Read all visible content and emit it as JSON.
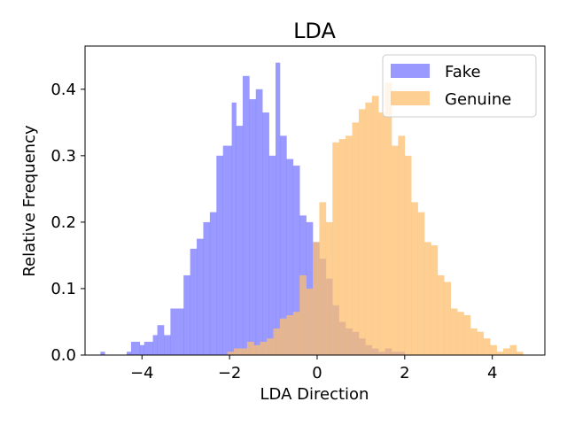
{
  "chart_data": {
    "type": "histogram",
    "title": "LDA",
    "xlabel": "LDA Direction",
    "ylabel": "Relative Frequency",
    "xlim": [
      -5.3,
      5.2
    ],
    "ylim": [
      0,
      0.465
    ],
    "xticks": [
      -4,
      -2,
      0,
      2,
      4
    ],
    "xtick_labels": [
      "−4",
      "−2",
      "0",
      "2",
      "4"
    ],
    "yticks": [
      0.0,
      0.1,
      0.2,
      0.3,
      0.4
    ],
    "ytick_labels": [
      "0.0",
      "0.1",
      "0.2",
      "0.3",
      "0.4"
    ],
    "legend_position": "top-right",
    "series": [
      {
        "name": "Fake",
        "color": "#7777ff",
        "alpha": 0.75,
        "bins": [
          [
            -4.95,
            -4.85,
            0.005
          ],
          [
            -4.35,
            -4.25,
            0.005
          ],
          [
            -4.25,
            -4.05,
            0.02
          ],
          [
            -4.05,
            -3.95,
            0.015
          ],
          [
            -3.95,
            -3.75,
            0.02
          ],
          [
            -3.75,
            -3.65,
            0.03
          ],
          [
            -3.65,
            -3.5,
            0.045
          ],
          [
            -3.5,
            -3.35,
            0.03
          ],
          [
            -3.35,
            -3.05,
            0.07
          ],
          [
            -3.05,
            -2.9,
            0.12
          ],
          [
            -2.9,
            -2.75,
            0.16
          ],
          [
            -2.75,
            -2.6,
            0.175
          ],
          [
            -2.6,
            -2.45,
            0.2
          ],
          [
            -2.45,
            -2.3,
            0.215
          ],
          [
            -2.3,
            -2.15,
            0.3
          ],
          [
            -2.15,
            -1.95,
            0.315
          ],
          [
            -1.95,
            -1.85,
            0.38
          ],
          [
            -1.85,
            -1.7,
            0.345
          ],
          [
            -1.7,
            -1.55,
            0.42
          ],
          [
            -1.55,
            -1.4,
            0.385
          ],
          [
            -1.4,
            -1.25,
            0.4
          ],
          [
            -1.25,
            -1.1,
            0.365
          ],
          [
            -1.1,
            -0.95,
            0.3
          ],
          [
            -0.95,
            -0.85,
            0.44
          ],
          [
            -0.85,
            -0.7,
            0.33
          ],
          [
            -0.7,
            -0.55,
            0.295
          ],
          [
            -0.55,
            -0.4,
            0.285
          ],
          [
            -0.4,
            -0.25,
            0.21
          ],
          [
            -0.25,
            -0.1,
            0.2
          ],
          [
            -0.1,
            0.05,
            0.17
          ],
          [
            0.05,
            0.2,
            0.145
          ],
          [
            0.2,
            0.35,
            0.115
          ],
          [
            0.35,
            0.5,
            0.075
          ],
          [
            0.5,
            0.65,
            0.05
          ],
          [
            0.65,
            0.8,
            0.04
          ],
          [
            0.8,
            0.95,
            0.035
          ],
          [
            0.95,
            1.1,
            0.025
          ],
          [
            1.1,
            1.25,
            0.015
          ],
          [
            1.25,
            1.4,
            0.01
          ],
          [
            1.4,
            1.55,
            0.005
          ],
          [
            1.55,
            1.7,
            0.01
          ],
          [
            1.7,
            1.85,
            0.005
          ],
          [
            1.85,
            2.0,
            0.005
          ]
        ]
      },
      {
        "name": "Genuine",
        "color": "#fdbf6f",
        "alpha": 0.75,
        "bins": [
          [
            -2.05,
            -1.9,
            0.005
          ],
          [
            -1.9,
            -1.75,
            0.01
          ],
          [
            -1.75,
            -1.6,
            0.01
          ],
          [
            -1.6,
            -1.45,
            0.02
          ],
          [
            -1.45,
            -1.3,
            0.015
          ],
          [
            -1.3,
            -1.15,
            0.02
          ],
          [
            -1.15,
            -1.0,
            0.025
          ],
          [
            -1.0,
            -0.85,
            0.04
          ],
          [
            -0.85,
            -0.7,
            0.055
          ],
          [
            -0.7,
            -0.55,
            0.06
          ],
          [
            -0.55,
            -0.4,
            0.065
          ],
          [
            -0.4,
            -0.25,
            0.12
          ],
          [
            -0.25,
            -0.1,
            0.1
          ],
          [
            -0.1,
            0.05,
            0.17
          ],
          [
            0.05,
            0.2,
            0.23
          ],
          [
            0.2,
            0.35,
            0.2
          ],
          [
            0.35,
            0.5,
            0.32
          ],
          [
            0.5,
            0.65,
            0.325
          ],
          [
            0.65,
            0.8,
            0.33
          ],
          [
            0.8,
            0.95,
            0.35
          ],
          [
            0.95,
            1.1,
            0.37
          ],
          [
            1.1,
            1.25,
            0.38
          ],
          [
            1.25,
            1.4,
            0.39
          ],
          [
            1.4,
            1.55,
            0.365
          ],
          [
            1.55,
            1.7,
            0.41
          ],
          [
            1.7,
            1.85,
            0.315
          ],
          [
            1.85,
            2.0,
            0.33
          ],
          [
            2.0,
            2.15,
            0.3
          ],
          [
            2.15,
            2.3,
            0.23
          ],
          [
            2.3,
            2.45,
            0.215
          ],
          [
            2.45,
            2.6,
            0.17
          ],
          [
            2.6,
            2.75,
            0.165
          ],
          [
            2.75,
            2.9,
            0.12
          ],
          [
            2.9,
            3.05,
            0.11
          ],
          [
            3.05,
            3.2,
            0.07
          ],
          [
            3.2,
            3.35,
            0.065
          ],
          [
            3.35,
            3.5,
            0.06
          ],
          [
            3.5,
            3.65,
            0.04
          ],
          [
            3.65,
            3.8,
            0.035
          ],
          [
            3.8,
            3.95,
            0.025
          ],
          [
            3.95,
            4.1,
            0.015
          ],
          [
            4.1,
            4.25,
            0.005
          ],
          [
            4.25,
            4.4,
            0.01
          ],
          [
            4.4,
            4.55,
            0.015
          ],
          [
            4.55,
            4.7,
            0.005
          ]
        ]
      }
    ]
  }
}
